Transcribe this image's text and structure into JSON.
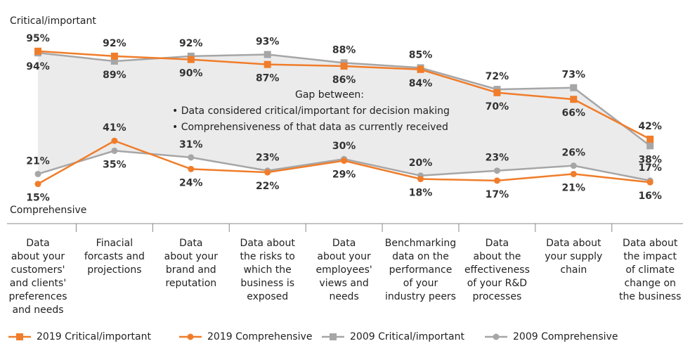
{
  "chart_data": {
    "type": "line",
    "annotations": {
      "top_label": "Critical/important",
      "bottom_label": "Comprehensive",
      "gap_title": "Gap between:",
      "gap_lines": [
        "• Data considered critical/important for decision making",
        "• Comprehensiveness of that data as currently received"
      ]
    },
    "categories": [
      "Data\nabout your\ncustomers'\nand clients'\npreferences\nand needs",
      "Finacial\nforcasts and\nprojections",
      "Data\nabout your\nbrand and\nreputation",
      "Data about\nthe risks to\nwhich the\nbusiness is\nexposed",
      "Data\nabout  your\nemployees'\nviews and\nneeds",
      "Benchmarking\ndata on the\nperformance\nof your\nindustry peers",
      "Data\nabout the\neffectiveness\nof your R&D\nprocesses",
      "Data about\nyour supply\nchain",
      "Data about\nthe impact\nof climate\nchange on\nthe business"
    ],
    "ylim": [
      0,
      100
    ],
    "series": [
      {
        "name": "2019 Critical/important",
        "color": "#f07d2a",
        "marker": "square",
        "group": "critical",
        "values": [
          95,
          92,
          90,
          87,
          86,
          84,
          70,
          66,
          42
        ],
        "value_labels": [
          "95%",
          "92%",
          "90%",
          "87%",
          "86%",
          "84%",
          "70%",
          "66%",
          "42%"
        ]
      },
      {
        "name": "2019 Comprehensive",
        "color": "#f07d2a",
        "marker": "circle",
        "group": "comprehensive",
        "values": [
          15,
          41,
          24,
          22,
          29,
          18,
          17,
          21,
          16
        ],
        "value_labels": [
          "15%",
          "41%",
          "24%",
          "22%",
          "29%",
          "18%",
          "17%",
          "21%",
          "16%"
        ]
      },
      {
        "name": "2009 Critical/important",
        "color": "#a6a6a6",
        "marker": "square",
        "group": "critical",
        "values": [
          94,
          89,
          92,
          93,
          88,
          85,
          72,
          73,
          38
        ],
        "value_labels": [
          "94%",
          "89%",
          "92%",
          "93%",
          "88%",
          "85%",
          "72%",
          "73%",
          "38%"
        ]
      },
      {
        "name": "2009 Comprehensive",
        "color": "#a6a6a6",
        "marker": "circle",
        "group": "comprehensive",
        "values": [
          21,
          35,
          31,
          23,
          30,
          20,
          23,
          26,
          17
        ],
        "value_labels": [
          "21%",
          "35%",
          "31%",
          "23%",
          "30%",
          "20%",
          "23%",
          "26%",
          "17%"
        ]
      }
    ]
  }
}
